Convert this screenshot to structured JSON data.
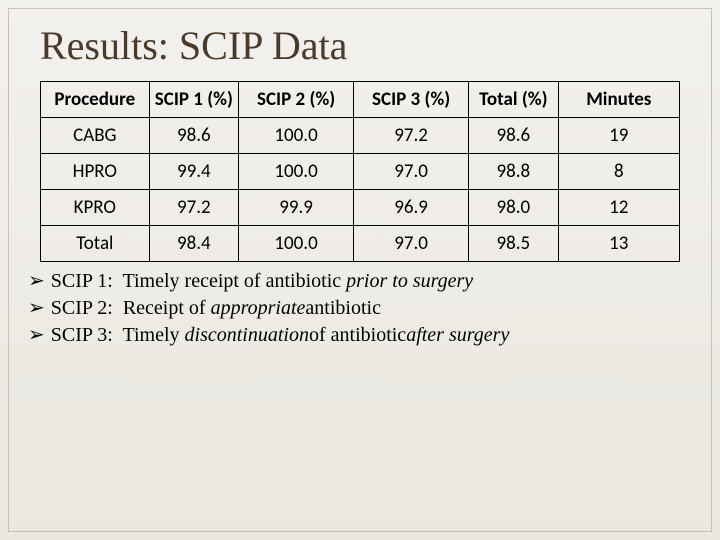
{
  "title": "Results: SCIP Data",
  "table": {
    "columns": [
      "Procedure",
      "SCIP 1 (%)",
      "SCIP 2  (%)",
      "SCIP 3  (%)",
      "Total (%)",
      "Minutes"
    ],
    "rows": [
      [
        "CABG",
        "98.6",
        "100.0",
        "97.2",
        "98.6",
        "19"
      ],
      [
        "HPRO",
        "99.4",
        "100.0",
        "97.0",
        "98.8",
        "8"
      ],
      [
        "KPRO",
        "97.2",
        "99.9",
        "96.9",
        "98.0",
        "12"
      ],
      [
        "Total",
        "98.4",
        "100.0",
        "97.0",
        "98.5",
        "13"
      ]
    ]
  },
  "notes": {
    "n1_label": "SCIP 1:",
    "n1_text_a": "  Timely receipt of antibiotic ",
    "n1_text_b": "prior to surgery",
    "n2_label": "SCIP 2:",
    "n2_text_a": "  Receipt of ",
    "n2_text_b": "appropriate",
    "n2_text_c": " antibiotic",
    "n3_label": "SCIP 3:",
    "n3_text_a": "  Timely ",
    "n3_text_b": "discontinuation",
    "n3_text_c": " of antibiotic ",
    "n3_text_d": "after surgery"
  },
  "bullet": "➢"
}
